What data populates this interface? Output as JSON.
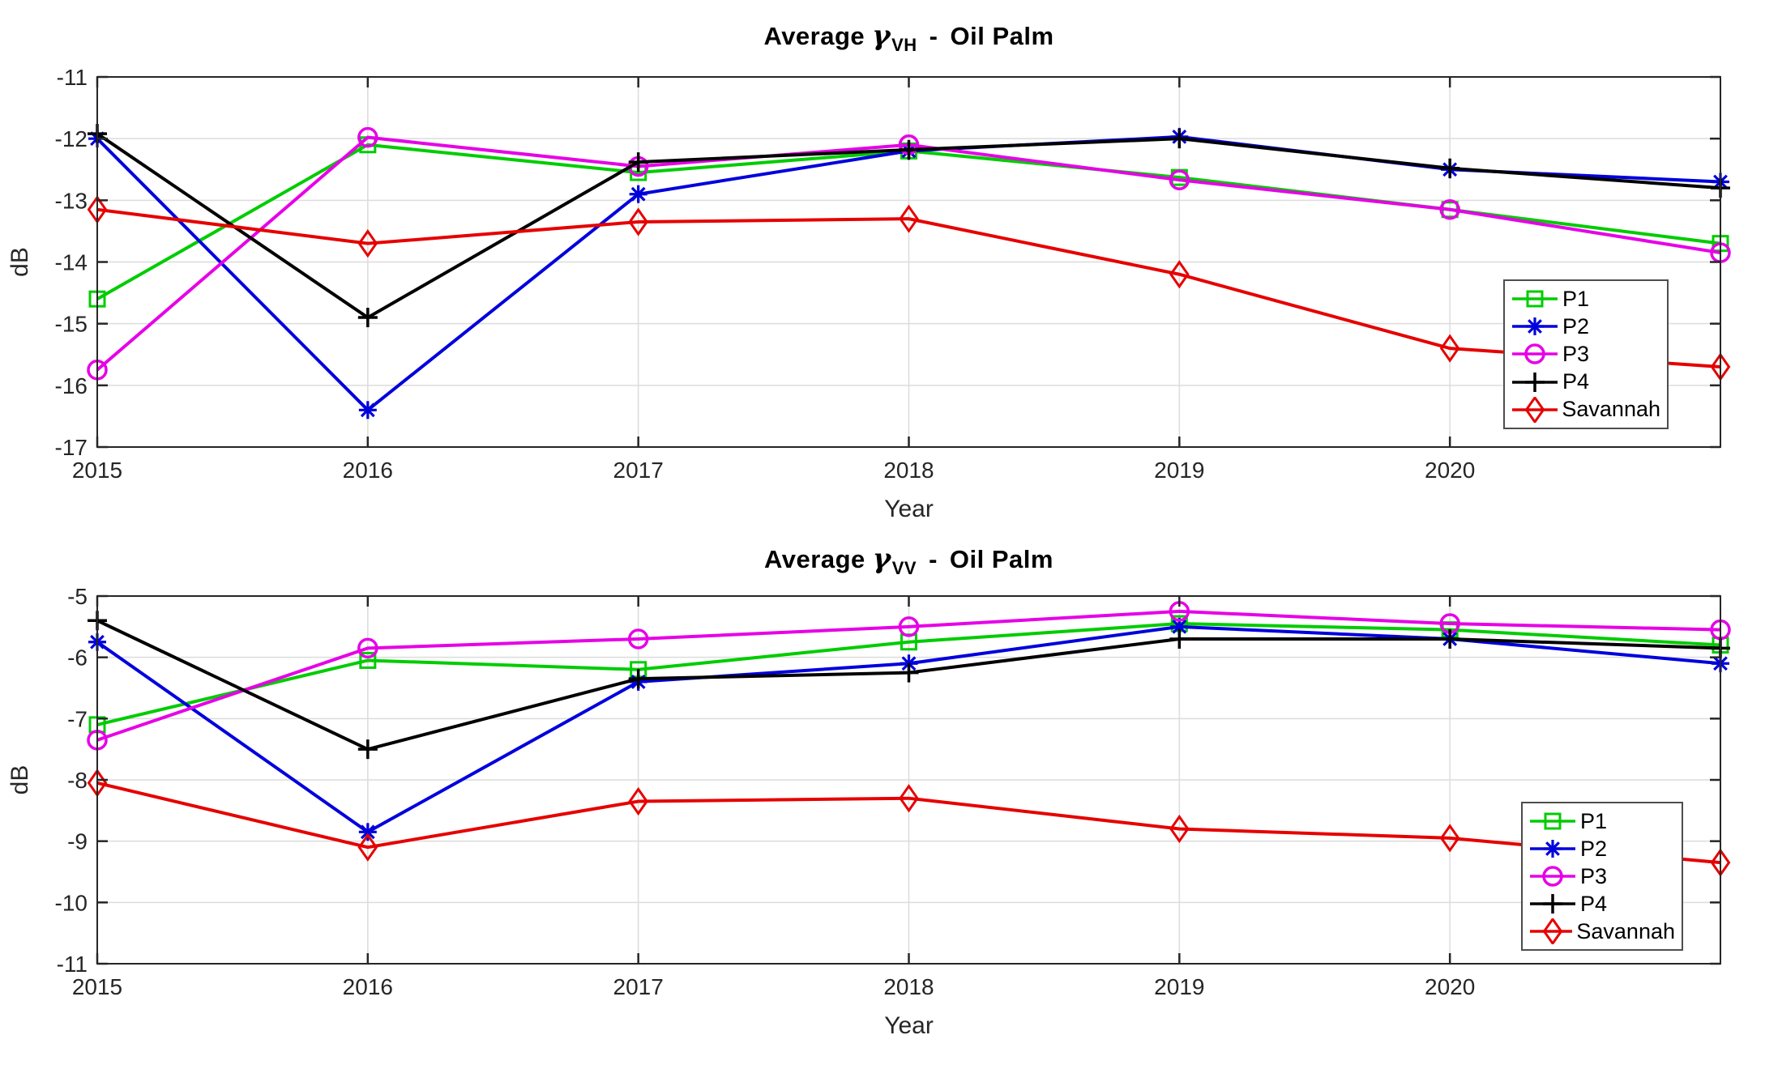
{
  "figure": {
    "background": "#ffffff",
    "axis_color": "#262626",
    "grid_color": "#dcdcdc"
  },
  "chart_data": [
    {
      "type": "line",
      "title": {
        "prefix": "Average",
        "gamma": "γ",
        "subscript": "VH",
        "separator": "-",
        "name": "Oil Palm"
      },
      "xlabel": "Year",
      "ylabel": "dB",
      "x": [
        2015,
        2016,
        2017,
        2018,
        2019,
        2020,
        2021
      ],
      "x_ticks": [
        2015,
        2016,
        2017,
        2018,
        2019,
        2020
      ],
      "x_tick_labels": [
        "2015",
        "2016",
        "2017",
        "2018",
        "2019",
        "2020"
      ],
      "ylim": [
        -17,
        -11
      ],
      "y_ticks": [
        -11,
        -12,
        -13,
        -14,
        -15,
        -16,
        -17
      ],
      "grid": true,
      "legend_position": "right-inside",
      "series": [
        {
          "name": "P1",
          "color": "#00cc00",
          "marker": "square",
          "values": [
            -14.6,
            -12.1,
            -12.55,
            -12.2,
            -12.63,
            -13.15,
            -13.7
          ]
        },
        {
          "name": "P2",
          "color": "#0000dd",
          "marker": "asterisk",
          "values": [
            -12.0,
            -16.4,
            -12.9,
            -12.2,
            -11.97,
            -12.5,
            -12.7
          ]
        },
        {
          "name": "P3",
          "color": "#e600e6",
          "marker": "circle",
          "values": [
            -15.75,
            -11.98,
            -12.45,
            -12.1,
            -12.67,
            -13.15,
            -13.85
          ]
        },
        {
          "name": "P4",
          "color": "#000000",
          "marker": "plus",
          "values": [
            -11.92,
            -14.9,
            -12.38,
            -12.18,
            -12.0,
            -12.48,
            -12.8
          ]
        },
        {
          "name": "Savannah",
          "color": "#e60000",
          "marker": "diamond",
          "values": [
            -13.15,
            -13.7,
            -13.35,
            -13.3,
            -14.2,
            -15.4,
            -15.7
          ]
        }
      ]
    },
    {
      "type": "line",
      "title": {
        "prefix": "Average",
        "gamma": "γ",
        "subscript": "VV",
        "separator": "-",
        "name": "Oil Palm"
      },
      "xlabel": "Year",
      "ylabel": "dB",
      "x": [
        2015,
        2016,
        2017,
        2018,
        2019,
        2020,
        2021
      ],
      "x_ticks": [
        2015,
        2016,
        2017,
        2018,
        2019,
        2020
      ],
      "x_tick_labels": [
        "2015",
        "2016",
        "2017",
        "2018",
        "2019",
        "2020"
      ],
      "ylim": [
        -11,
        -5
      ],
      "y_ticks": [
        -5,
        -6,
        -7,
        -8,
        -9,
        -10,
        -11
      ],
      "grid": true,
      "legend_position": "right-inside",
      "series": [
        {
          "name": "P1",
          "color": "#00cc00",
          "marker": "square",
          "values": [
            -7.1,
            -6.05,
            -6.2,
            -5.75,
            -5.45,
            -5.55,
            -5.8
          ]
        },
        {
          "name": "P2",
          "color": "#0000dd",
          "marker": "asterisk",
          "values": [
            -5.75,
            -8.85,
            -6.4,
            -6.1,
            -5.5,
            -5.7,
            -6.1
          ]
        },
        {
          "name": "P3",
          "color": "#e600e6",
          "marker": "circle",
          "values": [
            -7.35,
            -5.85,
            -5.7,
            -5.5,
            -5.25,
            -5.45,
            -5.55
          ]
        },
        {
          "name": "P4",
          "color": "#000000",
          "marker": "plus",
          "values": [
            -5.4,
            -7.5,
            -6.35,
            -6.25,
            -5.7,
            -5.7,
            -5.85
          ]
        },
        {
          "name": "Savannah",
          "color": "#e60000",
          "marker": "diamond",
          "values": [
            -8.05,
            -9.1,
            -8.35,
            -8.3,
            -8.8,
            -8.95,
            -9.35
          ]
        }
      ]
    }
  ]
}
